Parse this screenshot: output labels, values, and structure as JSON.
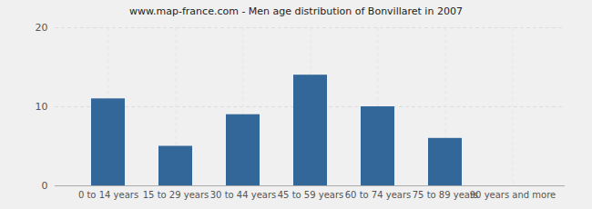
{
  "chart_data": {
    "type": "bar",
    "title": "www.map-france.com - Men age distribution of Bonvillaret in 2007",
    "categories": [
      "0 to 14 years",
      "15 to 29 years",
      "30 to 44 years",
      "45 to 59 years",
      "60 to 74 years",
      "75 to 89 years",
      "90 years and more"
    ],
    "values": [
      11,
      5,
      9,
      14,
      10,
      6,
      0
    ],
    "color": "#336699",
    "ylim": [
      0,
      20
    ],
    "yticks": [
      0,
      10,
      20
    ],
    "grid": true
  }
}
